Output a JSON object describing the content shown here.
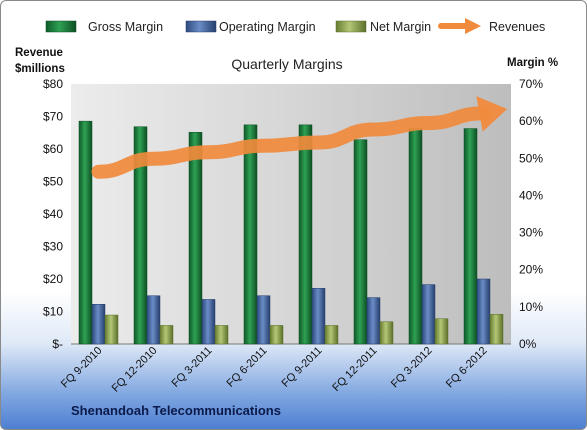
{
  "chart_data": {
    "type": "bar",
    "title": "Quarterly Margins",
    "footer": "Shenandoah Telecommunications",
    "categories": [
      "FQ 9-2010",
      "FQ 12-2010",
      "FQ 3-2011",
      "FQ 6-2011",
      "FQ 9-2011",
      "FQ 12-2011",
      "FQ 3-2012",
      "FQ 6-2012"
    ],
    "series": [
      {
        "name": "Gross Margin",
        "axis": "right",
        "color": "#1a7a3a",
        "values": [
          60,
          58.5,
          57,
          59,
          59,
          55,
          58,
          58
        ]
      },
      {
        "name": "Operating Margin",
        "axis": "right",
        "color": "#3f5f9a",
        "values": [
          10.7,
          13,
          12,
          13,
          15,
          12.5,
          16,
          17.5
        ]
      },
      {
        "name": "Net Margin",
        "axis": "right",
        "color": "#8aa04a",
        "values": [
          7.8,
          5,
          5,
          5,
          5,
          6,
          6.8,
          8
        ]
      },
      {
        "name": "Revenues",
        "axis": "left",
        "type": "line",
        "color": "#f08a3c",
        "values": [
          53,
          57,
          59,
          61,
          62,
          66,
          68,
          71
        ]
      }
    ],
    "y_left": {
      "label_line1": "Revenue",
      "label_line2": "$millions",
      "range": [
        0,
        80
      ],
      "ticks": [
        "$-",
        "$10",
        "$20",
        "$30",
        "$40",
        "$50",
        "$60",
        "$70",
        "$80"
      ]
    },
    "y_right": {
      "label": "Margin %",
      "range": [
        0,
        70
      ],
      "ticks": [
        "0%",
        "10%",
        "20%",
        "30%",
        "40%",
        "50%",
        "60%",
        "70%"
      ]
    },
    "grid": false,
    "legend": "top"
  }
}
